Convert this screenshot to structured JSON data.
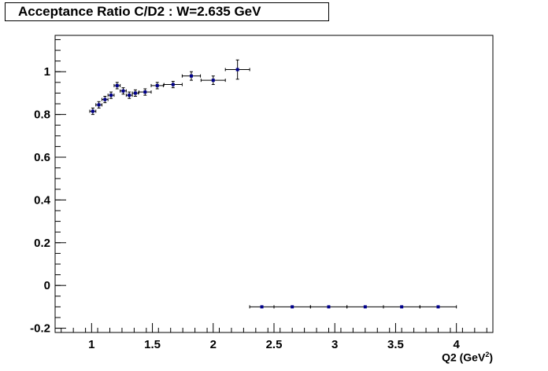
{
  "title": "Acceptance Ratio C/D2 : W=2.635 GeV",
  "chart_data": {
    "type": "scatter",
    "title": "Acceptance Ratio C/D2 : W=2.635 GeV",
    "xlabel": "Q2 (GeV",
    "xlabel_sup": "2",
    "xlabel_suffix": ")",
    "ylabel": "",
    "xlim": [
      0.7,
      4.3
    ],
    "ylim": [
      -0.22,
      1.17
    ],
    "x_ticks": [
      1,
      1.5,
      2,
      2.5,
      3,
      3.5,
      4
    ],
    "x_tick_labels": [
      "1",
      "1.5",
      "2",
      "2.5",
      "3",
      "3.5",
      "4"
    ],
    "y_ticks": [
      -0.2,
      0,
      0.2,
      0.4,
      0.6,
      0.8,
      1
    ],
    "y_tick_labels": [
      "-0.2",
      "0",
      "0.2",
      "0.4",
      "0.6",
      "0.8",
      "1"
    ],
    "grid": false,
    "marker_color": "#00008b",
    "points": [
      {
        "x": 1.01,
        "y": 0.815,
        "xerr": 0.025,
        "yerr": 0.015
      },
      {
        "x": 1.06,
        "y": 0.845,
        "xerr": 0.025,
        "yerr": 0.015
      },
      {
        "x": 1.11,
        "y": 0.87,
        "xerr": 0.025,
        "yerr": 0.015
      },
      {
        "x": 1.16,
        "y": 0.89,
        "xerr": 0.025,
        "yerr": 0.015
      },
      {
        "x": 1.21,
        "y": 0.935,
        "xerr": 0.025,
        "yerr": 0.015
      },
      {
        "x": 1.26,
        "y": 0.91,
        "xerr": 0.025,
        "yerr": 0.015
      },
      {
        "x": 1.31,
        "y": 0.89,
        "xerr": 0.025,
        "yerr": 0.015
      },
      {
        "x": 1.36,
        "y": 0.9,
        "xerr": 0.025,
        "yerr": 0.015
      },
      {
        "x": 1.44,
        "y": 0.905,
        "xerr": 0.05,
        "yerr": 0.015
      },
      {
        "x": 1.54,
        "y": 0.935,
        "xerr": 0.05,
        "yerr": 0.015
      },
      {
        "x": 1.67,
        "y": 0.94,
        "xerr": 0.075,
        "yerr": 0.015
      },
      {
        "x": 1.82,
        "y": 0.98,
        "xerr": 0.075,
        "yerr": 0.02
      },
      {
        "x": 2.0,
        "y": 0.96,
        "xerr": 0.1,
        "yerr": 0.02
      },
      {
        "x": 2.2,
        "y": 1.01,
        "xerr": 0.1,
        "yerr": 0.045
      },
      {
        "x": 2.4,
        "y": -0.1,
        "xerr": 0.1,
        "yerr": 0
      },
      {
        "x": 2.65,
        "y": -0.1,
        "xerr": 0.15,
        "yerr": 0
      },
      {
        "x": 2.95,
        "y": -0.1,
        "xerr": 0.15,
        "yerr": 0
      },
      {
        "x": 3.25,
        "y": -0.1,
        "xerr": 0.15,
        "yerr": 0
      },
      {
        "x": 3.55,
        "y": -0.1,
        "xerr": 0.15,
        "yerr": 0
      },
      {
        "x": 3.85,
        "y": -0.1,
        "xerr": 0.15,
        "yerr": 0
      }
    ]
  }
}
